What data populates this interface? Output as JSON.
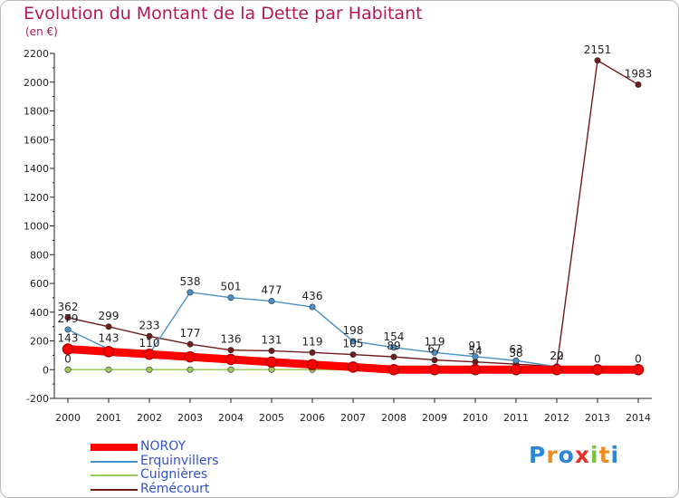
{
  "title": "Evolution du Montant de la Dette par Habitant",
  "subtitle": "(en €)",
  "logo": {
    "letters": [
      "P",
      "r",
      "o",
      "x",
      "i",
      "t",
      "i"
    ],
    "colors": [
      "#2e87d4",
      "#f08c1e",
      "#2e87d4",
      "#e6302c",
      "#7cc242",
      "#f08c1e",
      "#2e87d4"
    ]
  },
  "chart_data": {
    "type": "line",
    "x": [
      "2000",
      "2001",
      "2002",
      "2003",
      "2004",
      "2005",
      "2006",
      "2007",
      "2008",
      "2009",
      "2010",
      "2011",
      "2012",
      "2013",
      "2014"
    ],
    "ylim": [
      -200,
      2200
    ],
    "yticks": [
      "-200",
      "0",
      "200",
      "400",
      "600",
      "800",
      "1000",
      "1200",
      "1400",
      "1600",
      "1800",
      "2000",
      "2200"
    ],
    "grid": false,
    "legend_position": "bottom-left",
    "series": [
      {
        "name": "NOROY",
        "color": "#ff0000",
        "values": [
          143,
          125,
          107,
          89,
          71,
          53,
          35,
          18,
          0,
          0,
          0,
          0,
          0,
          0,
          0
        ],
        "labels": [
          "143",
          "",
          "",
          "",
          "",
          "",
          "",
          "",
          "",
          "",
          "",
          "",
          "",
          "",
          ""
        ]
      },
      {
        "name": "Erquinvillers",
        "color": "#4a90c8",
        "values": [
          279,
          143,
          110,
          538,
          501,
          477,
          436,
          198,
          154,
          119,
          91,
          63,
          20,
          0,
          0
        ],
        "labels": [
          "279",
          "143",
          "110",
          "538",
          "501",
          "477",
          "436",
          "198",
          "154",
          "119",
          "91",
          "63",
          "20",
          "0",
          "0"
        ]
      },
      {
        "name": "Cuignières",
        "color": "#9ccb5a",
        "values": [
          0,
          0,
          0,
          0,
          0,
          0,
          0,
          0,
          0,
          0,
          0,
          0,
          0,
          0,
          0
        ],
        "labels": [
          "0",
          "",
          "",
          "",
          "",
          "",
          "",
          "",
          "",
          "",
          "",
          "",
          "",
          "",
          ""
        ]
      },
      {
        "name": "Rémécourt",
        "color": "#6e1c1c",
        "values": [
          362,
          299,
          233,
          177,
          136,
          131,
          119,
          105,
          89,
          67,
          54,
          38,
          22,
          2151,
          1983
        ],
        "labels": [
          "362",
          "299",
          "233",
          "177",
          "136",
          "131",
          "119",
          "105",
          "89",
          "67",
          "54",
          "38",
          "22",
          "2151",
          "1983"
        ]
      }
    ]
  }
}
